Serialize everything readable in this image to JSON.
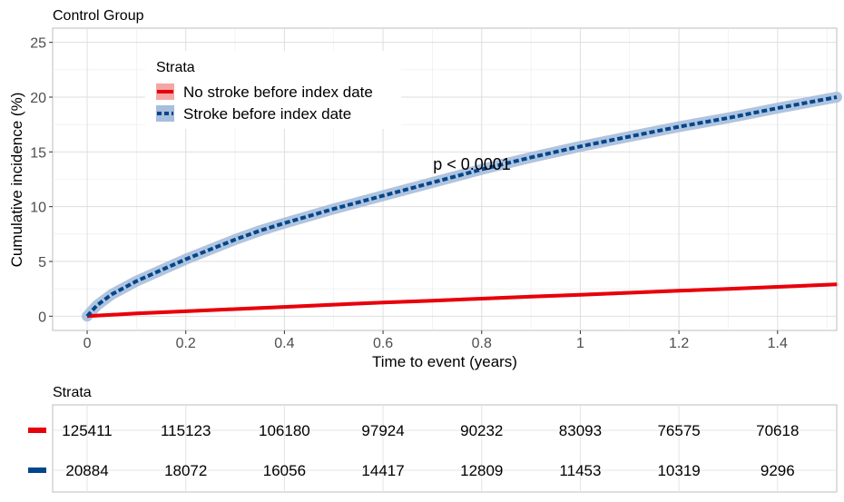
{
  "chart_data": {
    "type": "line",
    "title": "Control Group",
    "xlabel": "Time to event (years)",
    "ylabel": "Cumulative incidence (%)",
    "xlim": [
      -0.07,
      1.52
    ],
    "ylim": [
      -1.3,
      26.3
    ],
    "x_ticks": [
      "0",
      "0.2",
      "0.4",
      "0.6",
      "0.8",
      "1",
      "1.2",
      "1.4"
    ],
    "y_ticks": [
      "0",
      "5",
      "10",
      "15",
      "20",
      "25"
    ],
    "grid": true,
    "legend_title": "Strata",
    "legend_position": "top-left",
    "annotation": "p < 0.0001",
    "series": [
      {
        "name": "No stroke before index date",
        "color": "#e8000b",
        "band_color": "#f4a6a6",
        "style": "solid",
        "x": [
          0,
          0.1,
          0.2,
          0.3,
          0.4,
          0.5,
          0.6,
          0.7,
          0.8,
          0.9,
          1.0,
          1.1,
          1.2,
          1.3,
          1.4,
          1.52
        ],
        "y": [
          0,
          0.25,
          0.45,
          0.65,
          0.85,
          1.05,
          1.25,
          1.42,
          1.6,
          1.78,
          1.96,
          2.14,
          2.32,
          2.5,
          2.68,
          2.9
        ]
      },
      {
        "name": "Stroke before index date",
        "color": "#00468b",
        "band_color": "#a7bedc",
        "style": "dashed",
        "x": [
          0,
          0.02,
          0.05,
          0.1,
          0.15,
          0.2,
          0.25,
          0.3,
          0.35,
          0.4,
          0.5,
          0.6,
          0.7,
          0.8,
          0.9,
          1.0,
          1.1,
          1.2,
          1.3,
          1.4,
          1.52
        ],
        "y": [
          0,
          1.0,
          2.0,
          3.2,
          4.2,
          5.2,
          6.1,
          7.0,
          7.8,
          8.5,
          9.8,
          11.0,
          12.2,
          13.4,
          14.5,
          15.5,
          16.4,
          17.3,
          18.1,
          19.0,
          20.0
        ]
      }
    ]
  },
  "risk_table": {
    "title": "Strata",
    "rows": [
      {
        "color": "#e8000b",
        "values": [
          "125411",
          "115123",
          "106180",
          "97924",
          "90232",
          "83093",
          "76575",
          "70618"
        ]
      },
      {
        "color": "#00468b",
        "values": [
          "20884",
          "18072",
          "16056",
          "14417",
          "12809",
          "11453",
          "10319",
          "9296"
        ]
      }
    ]
  }
}
